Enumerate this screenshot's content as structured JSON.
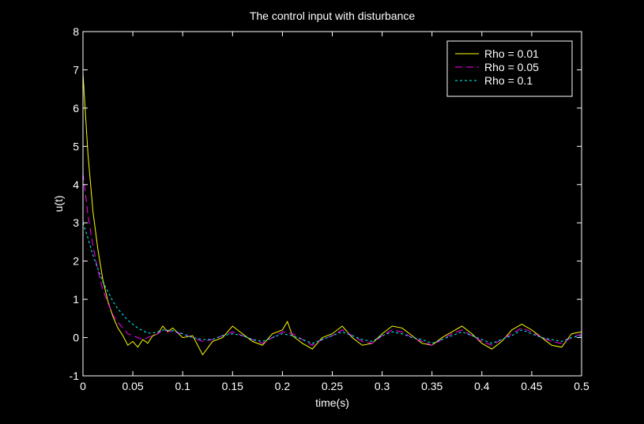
{
  "chart_data": {
    "type": "line",
    "title": "The control input with disturbance",
    "xlabel": "time(s)",
    "ylabel": "u(t)",
    "xlim": [
      0,
      0.5
    ],
    "ylim": [
      -1,
      8
    ],
    "x_ticks": [
      0,
      0.05,
      0.1,
      0.15,
      0.2,
      0.25,
      0.3,
      0.35,
      0.4,
      0.45,
      0.5
    ],
    "x_tick_labels": [
      "0",
      "0.05",
      "0.1",
      "0.15",
      "0.2",
      "0.25",
      "0.3",
      "0.35",
      "0.4",
      "0.45",
      "0.5"
    ],
    "y_ticks": [
      -1,
      0,
      1,
      2,
      3,
      4,
      5,
      6,
      7,
      8
    ],
    "y_tick_labels": [
      "-1",
      "0",
      "1",
      "2",
      "3",
      "4",
      "5",
      "6",
      "7",
      "8"
    ],
    "grid": false,
    "legend_position": "top-right",
    "background": "#000000",
    "axes_color": "#ffffff",
    "series": [
      {
        "name": "Rho = 0.01",
        "color": "#ffff00",
        "dash": "solid",
        "x": [
          0,
          0.005,
          0.01,
          0.015,
          0.02,
          0.025,
          0.03,
          0.035,
          0.04,
          0.045,
          0.05,
          0.055,
          0.06,
          0.065,
          0.07,
          0.075,
          0.08,
          0.085,
          0.09,
          0.1,
          0.11,
          0.12,
          0.13,
          0.14,
          0.15,
          0.16,
          0.17,
          0.18,
          0.19,
          0.2,
          0.205,
          0.21,
          0.22,
          0.23,
          0.24,
          0.25,
          0.26,
          0.27,
          0.28,
          0.29,
          0.3,
          0.31,
          0.32,
          0.33,
          0.34,
          0.35,
          0.36,
          0.37,
          0.38,
          0.39,
          0.4,
          0.41,
          0.42,
          0.43,
          0.44,
          0.45,
          0.46,
          0.47,
          0.48,
          0.49,
          0.5
        ],
        "y": [
          6.9,
          4.8,
          3.3,
          2.3,
          1.5,
          0.95,
          0.55,
          0.25,
          0.05,
          -0.2,
          -0.1,
          -0.25,
          -0.05,
          -0.15,
          0.05,
          0.1,
          0.3,
          0.15,
          0.25,
          0.0,
          0.05,
          -0.45,
          -0.1,
          0.0,
          0.3,
          0.1,
          -0.1,
          -0.2,
          0.1,
          0.2,
          0.42,
          0.05,
          -0.15,
          -0.3,
          0.0,
          0.1,
          0.3,
          0.0,
          -0.2,
          -0.15,
          0.1,
          0.3,
          0.25,
          0.05,
          -0.15,
          -0.2,
          0.0,
          0.15,
          0.3,
          0.1,
          -0.15,
          -0.3,
          -0.1,
          0.2,
          0.35,
          0.2,
          0.0,
          -0.2,
          -0.25,
          0.1,
          0.15
        ]
      },
      {
        "name": "Rho = 0.05",
        "color": "#ff00ff",
        "dash": "dashed",
        "x": [
          0,
          0.005,
          0.01,
          0.015,
          0.02,
          0.025,
          0.03,
          0.035,
          0.04,
          0.045,
          0.05,
          0.055,
          0.06,
          0.065,
          0.07,
          0.075,
          0.08,
          0.09,
          0.1,
          0.11,
          0.12,
          0.13,
          0.14,
          0.15,
          0.16,
          0.17,
          0.18,
          0.19,
          0.2,
          0.21,
          0.22,
          0.23,
          0.24,
          0.25,
          0.26,
          0.27,
          0.28,
          0.29,
          0.3,
          0.31,
          0.32,
          0.33,
          0.34,
          0.35,
          0.36,
          0.37,
          0.38,
          0.39,
          0.4,
          0.41,
          0.42,
          0.43,
          0.44,
          0.45,
          0.46,
          0.47,
          0.48,
          0.49,
          0.5
        ],
        "y": [
          4.3,
          3.2,
          2.4,
          1.75,
          1.25,
          0.9,
          0.6,
          0.4,
          0.25,
          0.1,
          0.05,
          0.0,
          -0.05,
          0.0,
          0.05,
          0.1,
          0.2,
          0.15,
          0.1,
          0.0,
          -0.1,
          -0.05,
          0.05,
          0.15,
          0.05,
          -0.05,
          -0.15,
          0.0,
          0.15,
          0.1,
          -0.05,
          -0.2,
          -0.05,
          0.05,
          0.2,
          0.05,
          -0.1,
          -0.15,
          0.05,
          0.2,
          0.15,
          0.0,
          -0.1,
          -0.2,
          -0.05,
          0.1,
          0.2,
          0.05,
          -0.1,
          -0.2,
          -0.05,
          0.1,
          0.25,
          0.15,
          0.0,
          -0.1,
          -0.15,
          0.0,
          0.1
        ]
      },
      {
        "name": "Rho = 0.1",
        "color": "#00ffff",
        "dash": "dotted",
        "x": [
          0,
          0.005,
          0.01,
          0.015,
          0.02,
          0.025,
          0.03,
          0.035,
          0.04,
          0.045,
          0.05,
          0.055,
          0.06,
          0.065,
          0.07,
          0.075,
          0.08,
          0.09,
          0.1,
          0.11,
          0.12,
          0.13,
          0.14,
          0.15,
          0.16,
          0.17,
          0.18,
          0.19,
          0.2,
          0.21,
          0.22,
          0.23,
          0.24,
          0.25,
          0.26,
          0.27,
          0.28,
          0.29,
          0.3,
          0.31,
          0.32,
          0.33,
          0.34,
          0.35,
          0.36,
          0.37,
          0.38,
          0.39,
          0.4,
          0.41,
          0.42,
          0.43,
          0.44,
          0.45,
          0.46,
          0.47,
          0.48,
          0.49,
          0.5
        ],
        "y": [
          3.0,
          2.6,
          2.15,
          1.8,
          1.45,
          1.2,
          0.95,
          0.75,
          0.6,
          0.45,
          0.35,
          0.25,
          0.18,
          0.12,
          0.12,
          0.15,
          0.2,
          0.18,
          0.1,
          0.0,
          -0.05,
          -0.05,
          0.05,
          0.1,
          0.05,
          -0.05,
          -0.1,
          0.0,
          0.1,
          0.05,
          -0.05,
          -0.15,
          -0.05,
          0.05,
          0.15,
          0.05,
          -0.05,
          -0.1,
          0.05,
          0.15,
          0.1,
          0.0,
          -0.05,
          -0.15,
          -0.05,
          0.05,
          0.15,
          0.05,
          -0.05,
          -0.15,
          -0.05,
          0.05,
          0.2,
          0.1,
          0.0,
          -0.05,
          -0.1,
          0.0,
          0.05
        ]
      }
    ]
  }
}
